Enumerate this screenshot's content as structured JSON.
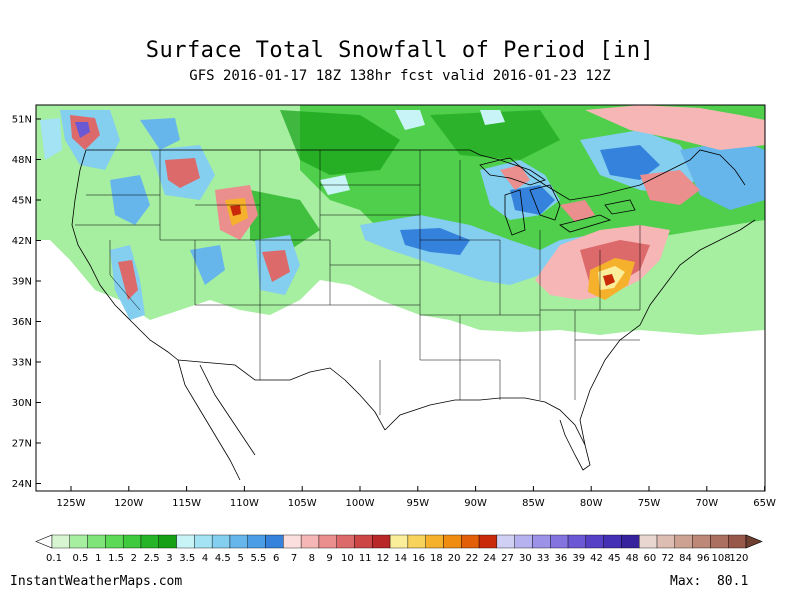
{
  "title": "Surface Total Snowfall of Period [in]",
  "subtitle": "GFS 2016-01-17 18Z 138hr fcst valid 2016-01-23 12Z",
  "lat_labels": [
    "51N",
    "48N",
    "45N",
    "42N",
    "39N",
    "36N",
    "33N",
    "30N",
    "27N",
    "24N"
  ],
  "lon_labels": [
    "125W",
    "120W",
    "115W",
    "110W",
    "105W",
    "100W",
    "95W",
    "90W",
    "85W",
    "80W",
    "75W",
    "70W",
    "65W"
  ],
  "legend": {
    "labels": [
      "0.1",
      "0.5",
      "1",
      "1.5",
      "2",
      "2.5",
      "3",
      "3.5",
      "4",
      "4.5",
      "5",
      "5.5",
      "6",
      "7",
      "8",
      "9",
      "10",
      "11",
      "12",
      "14",
      "16",
      "18",
      "20",
      "22",
      "24",
      "27",
      "30",
      "33",
      "36",
      "39",
      "42",
      "45",
      "48",
      "60",
      "72",
      "84",
      "96",
      "108",
      "120"
    ],
    "colors": [
      "#d7f5d0",
      "#a6eea0",
      "#7fe57a",
      "#5cd957",
      "#3fc93c",
      "#28b428",
      "#15a015",
      "#c8f4f8",
      "#a3e3f3",
      "#84cef0",
      "#66b6ec",
      "#4b9de6",
      "#3582dc",
      "#fbdede",
      "#f6b6b6",
      "#ea8e8e",
      "#dc6a6a",
      "#cc4646",
      "#b82828",
      "#fbee9a",
      "#f8d35c",
      "#f5b12c",
      "#f08c10",
      "#e25e08",
      "#c82a0a",
      "#d0d0f5",
      "#b6b2ef",
      "#9c92e8",
      "#8474df",
      "#6b58d4",
      "#5640c6",
      "#4330b4",
      "#35229c",
      "#ead6d0",
      "#ddbcb2",
      "#cea293",
      "#bd8878",
      "#ab705f",
      "#97584a"
    ],
    "upper_arrow_color": "#6e3e30"
  },
  "footer": {
    "site": "InstantWeatherMaps.com",
    "max_label": "Max:",
    "max_value": "80.1"
  }
}
